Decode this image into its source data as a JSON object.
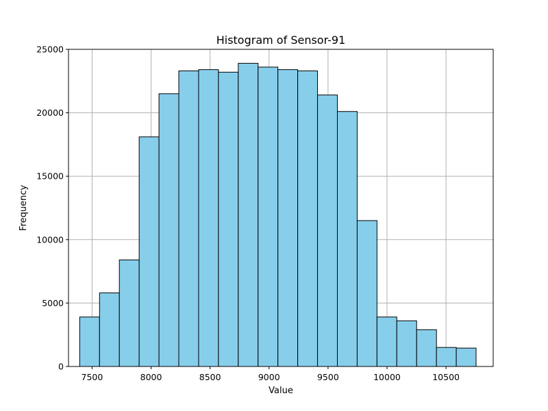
{
  "chart_data": {
    "type": "bar",
    "title": "Histogram of Sensor-91",
    "xlabel": "Value",
    "ylabel": "Frequency",
    "xlim": [
      7300,
      10900
    ],
    "ylim": [
      0,
      25000
    ],
    "grid": true,
    "bar_color": "#87ceeb",
    "edge_color": "#000000",
    "grid_color": "#b0b0b0",
    "xticks": [
      7500,
      8000,
      8500,
      9000,
      9500,
      10000,
      10500
    ],
    "yticks": [
      0,
      5000,
      10000,
      15000,
      20000,
      25000
    ],
    "bin_edges": [
      7395,
      7563,
      7731,
      7899,
      8067,
      8235,
      8403,
      8571,
      8739,
      8907,
      9075,
      9243,
      9411,
      9579,
      9747,
      9915,
      10083,
      10251,
      10419,
      10587,
      10755
    ],
    "values": [
      3900,
      5800,
      8400,
      18100,
      21500,
      23300,
      23400,
      23200,
      23900,
      23600,
      23400,
      23300,
      21400,
      20100,
      11500,
      3900,
      3600,
      2900,
      1500,
      1450
    ]
  }
}
